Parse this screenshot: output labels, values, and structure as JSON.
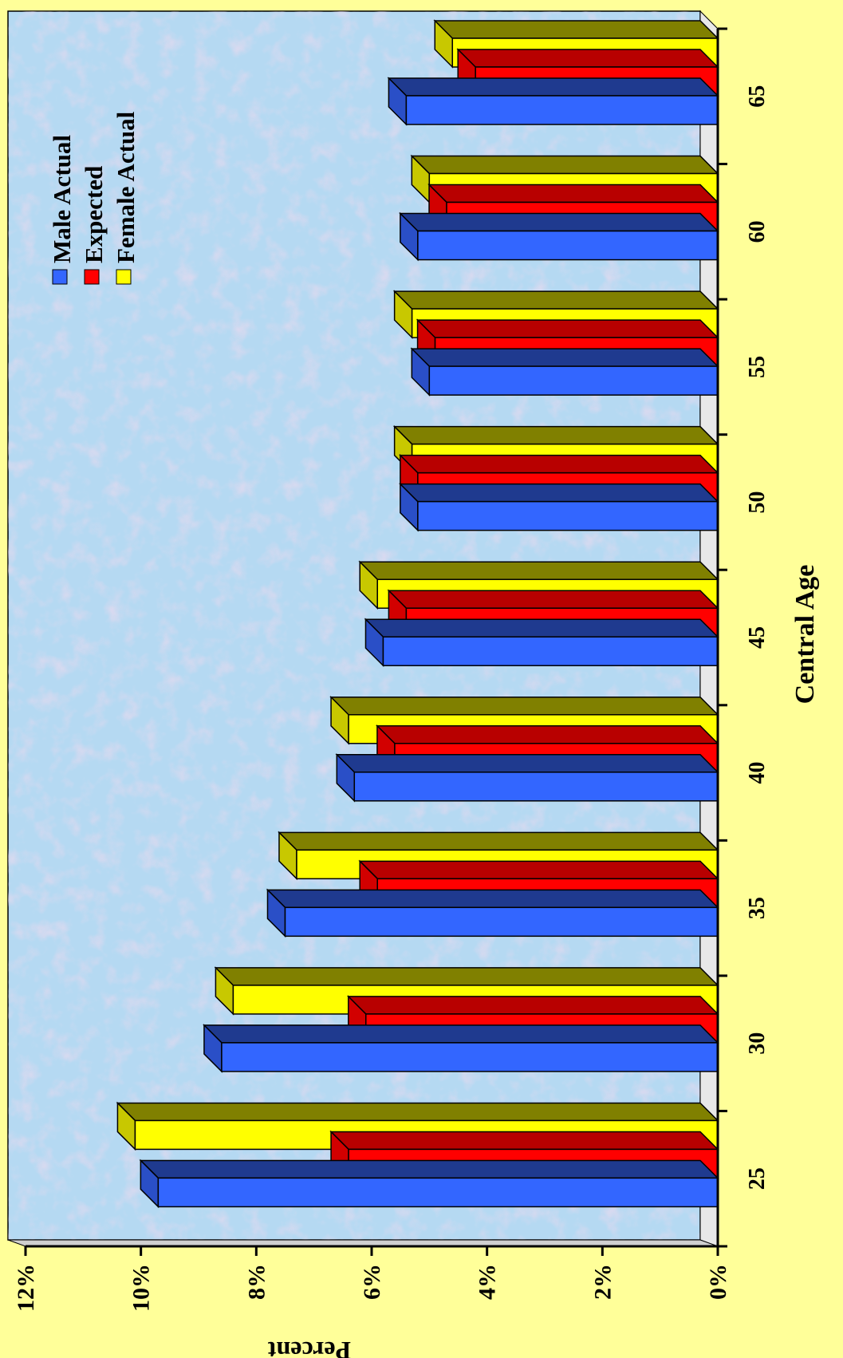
{
  "chart_data": {
    "type": "bar",
    "orientation": "rotated-90",
    "title": "",
    "xlabel": "Central Age",
    "ylabel": "Percent",
    "categories": [
      "25",
      "30",
      "35",
      "40",
      "45",
      "50",
      "55",
      "60",
      "65"
    ],
    "ylim": [
      0,
      12
    ],
    "yticks": [
      "0%",
      "2%",
      "4%",
      "6%",
      "8%",
      "10%",
      "12%"
    ],
    "legend_position": "top-left",
    "series": [
      {
        "name": "Male Actual",
        "color": "#3366ff",
        "values": [
          9.7,
          8.6,
          7.5,
          6.3,
          5.8,
          5.2,
          5.0,
          5.2,
          5.4
        ]
      },
      {
        "name": "Expected",
        "color": "#ff0000",
        "values": [
          6.4,
          6.1,
          5.9,
          5.6,
          5.4,
          5.2,
          4.9,
          4.7,
          4.2
        ]
      },
      {
        "name": "Female Actual",
        "color": "#ffff00",
        "values": [
          10.1,
          8.4,
          7.3,
          6.4,
          5.9,
          5.3,
          5.3,
          5.0,
          4.6
        ]
      }
    ]
  }
}
